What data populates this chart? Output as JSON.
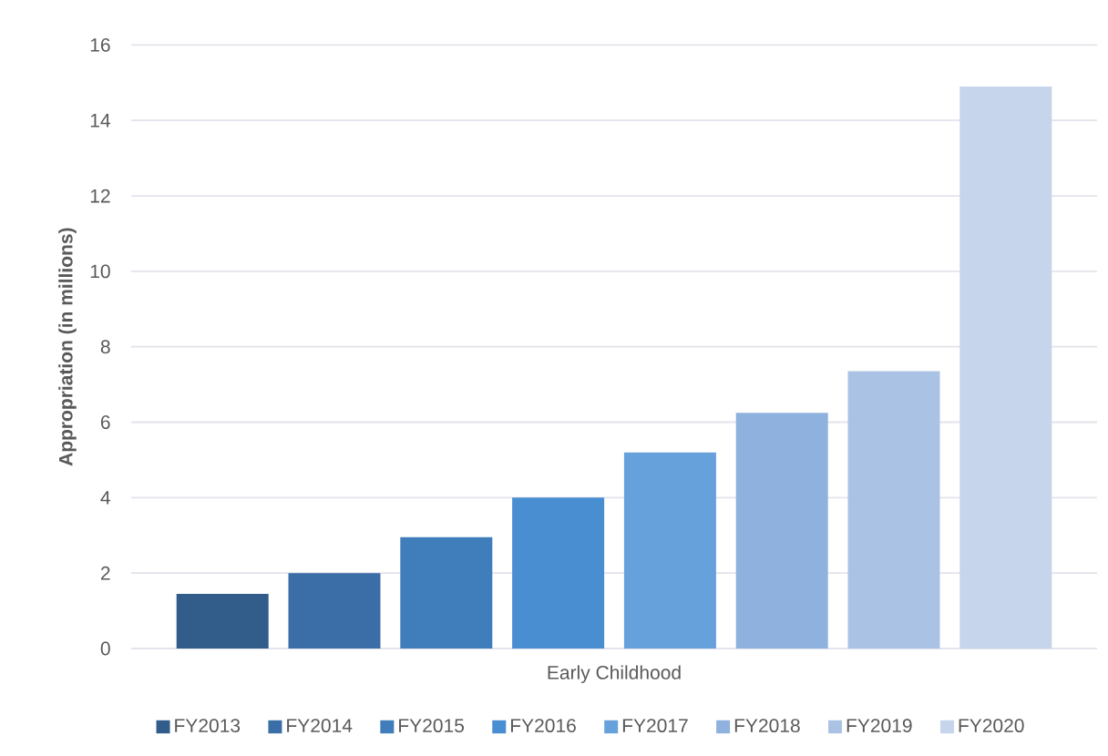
{
  "chart_data": {
    "type": "bar",
    "ylabel": "Appropriation (in millions)",
    "categories": [
      "Early Childhood"
    ],
    "series": [
      {
        "name": "FY2013",
        "color": "#325d8b",
        "values": [
          1.45
        ]
      },
      {
        "name": "FY2014",
        "color": "#3b6ea6",
        "values": [
          2
        ]
      },
      {
        "name": "FY2015",
        "color": "#3f7ebb",
        "values": [
          2.95
        ]
      },
      {
        "name": "FY2016",
        "color": "#4a8ed2",
        "values": [
          4
        ]
      },
      {
        "name": "FY2017",
        "color": "#67a1dc",
        "values": [
          5.2
        ]
      },
      {
        "name": "FY2018",
        "color": "#8fb1dd",
        "values": [
          6.25
        ]
      },
      {
        "name": "FY2019",
        "color": "#aac3e4",
        "values": [
          7.35
        ]
      },
      {
        "name": "FY2020",
        "color": "#c6d5ec",
        "values": [
          14.9
        ]
      }
    ],
    "ylim": [
      0,
      16
    ],
    "yticks": [
      0,
      2,
      4,
      6,
      8,
      10,
      12,
      14,
      16
    ],
    "grid": "y",
    "legend": "bottom"
  }
}
